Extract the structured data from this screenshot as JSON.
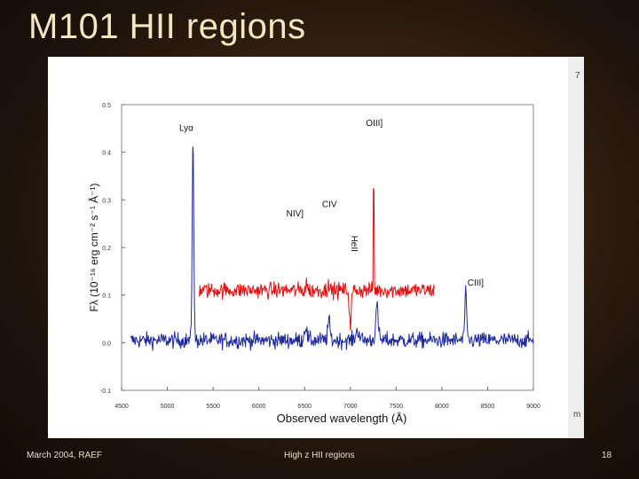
{
  "slide": {
    "title": "M101 HII regions",
    "footer_left": "March 2004, RAEF",
    "footer_center": "High z HII regions",
    "page_number": "18",
    "edge_fragment_top": "7",
    "edge_fragment_bottom": "m"
  },
  "chart_data": {
    "type": "line",
    "xlabel": "Observed wavelength (Å)",
    "ylabel": "Fλ (10⁻¹⁶ erg cm⁻² s⁻¹ Å⁻¹)",
    "xlim": [
      4500,
      9000
    ],
    "ylim": [
      -0.1,
      0.5
    ],
    "xticks": [
      4500,
      5000,
      5500,
      6000,
      6500,
      7000,
      7500,
      8000,
      8500,
      9000
    ],
    "yticks": [
      -0.1,
      0.0,
      0.1,
      0.2,
      0.3,
      0.4,
      0.5
    ],
    "xtick_labels": [
      "4500",
      "5000",
      "5500",
      "6000",
      "6500",
      "7000",
      "7500",
      "8000",
      "8500",
      "9000"
    ],
    "ytick_labels": [
      "-0.1",
      "0.0",
      "0.1",
      "0.2",
      "0.3",
      "0.4",
      "0.5"
    ],
    "grid": false,
    "series": [
      {
        "color": "#1e2a9a",
        "x_range": [
          4600,
          9000
        ],
        "continuum": 0.005,
        "noise": 0.012,
        "lines": [
          {
            "x": 5280,
            "peak": 0.435,
            "width": 12
          },
          {
            "x": 6510,
            "peak": 0.035,
            "width": 20
          },
          {
            "x": 6765,
            "peak": 0.045,
            "width": 18
          },
          {
            "x": 7080,
            "peak": 0.025,
            "width": 30
          },
          {
            "x": 7290,
            "peak": 0.075,
            "width": 20
          },
          {
            "x": 8260,
            "peak": 0.1,
            "width": 15
          }
        ]
      },
      {
        "color": "#e01010",
        "x_range": [
          5350,
          7920
        ],
        "continuum": 0.11,
        "noise": 0.012,
        "lines": [
          {
            "x": 6520,
            "peak": 0.135,
            "width": 8
          },
          {
            "x": 6760,
            "peak": 0.14,
            "width": 8
          },
          {
            "x": 7255,
            "peak": 0.415,
            "width": 5
          },
          {
            "x": 7000,
            "peak": 0.035,
            "width": 15
          }
        ]
      }
    ],
    "annotations": [
      {
        "text": "Lyα",
        "x": 5130,
        "y": 0.445,
        "rotate": 0
      },
      {
        "text": "OIII]",
        "x": 7170,
        "y": 0.455,
        "rotate": 0
      },
      {
        "text": "CIV",
        "x": 6690,
        "y": 0.285,
        "rotate": 0
      },
      {
        "text": "NIV]",
        "x": 6300,
        "y": 0.265,
        "rotate": 0
      },
      {
        "text": "HeII",
        "x": 7010,
        "y": 0.225,
        "rotate": 90
      },
      {
        "text": "CIII]",
        "x": 8280,
        "y": 0.12,
        "rotate": 0
      }
    ]
  }
}
